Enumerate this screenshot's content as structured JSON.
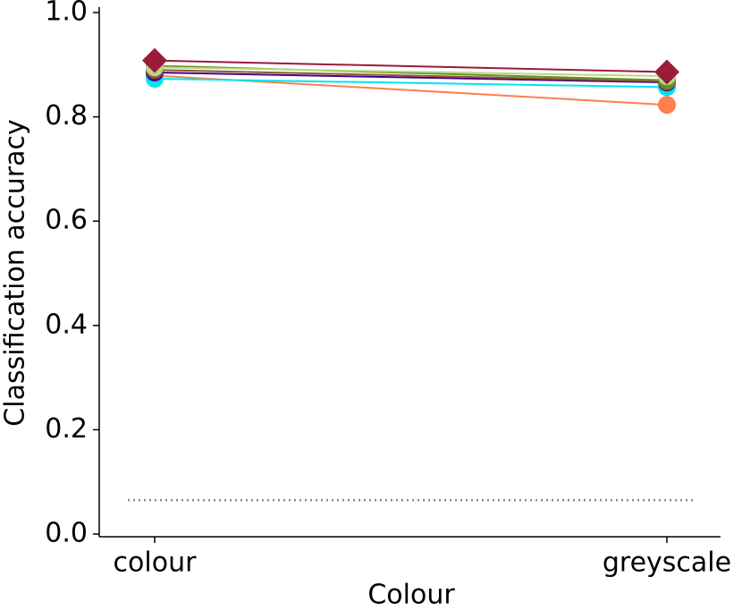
{
  "chart_data": {
    "type": "line",
    "xlabel": "Colour",
    "ylabel": "Classification accuracy",
    "categories": [
      "colour",
      "greyscale"
    ],
    "ylim": [
      -0.005,
      1.01
    ],
    "yticks": [
      {
        "value": 0,
        "label": "0.0"
      },
      {
        "value": 0.2,
        "label": "0.2"
      },
      {
        "value": 0.4,
        "label": "0.4"
      },
      {
        "value": 0.6,
        "label": "0.6"
      },
      {
        "value": 0.8,
        "label": "0.8"
      },
      {
        "value": 1,
        "label": "1.0"
      }
    ],
    "chance_level": 0.065,
    "chance_color": "#888888",
    "series": [
      {
        "color": "#ff7f50",
        "marker": "circle",
        "values": [
          0.879,
          0.823
        ]
      },
      {
        "color": "#00e5ee",
        "marker": "circle",
        "values": [
          0.873,
          0.857
        ]
      },
      {
        "color": "#4b0082",
        "marker": "circle",
        "values": [
          0.885,
          0.866
        ]
      },
      {
        "color": "#8b5a2b",
        "marker": "circle",
        "values": [
          0.89,
          0.868
        ]
      },
      {
        "color": "#6b8e23",
        "marker": "circle",
        "values": [
          0.898,
          0.87
        ]
      },
      {
        "color": "#b5d98a",
        "marker": "circle",
        "values": [
          0.895,
          0.878
        ]
      },
      {
        "color": "#9b1b3a",
        "marker": "diamond",
        "values": [
          0.908,
          0.886
        ]
      }
    ]
  }
}
